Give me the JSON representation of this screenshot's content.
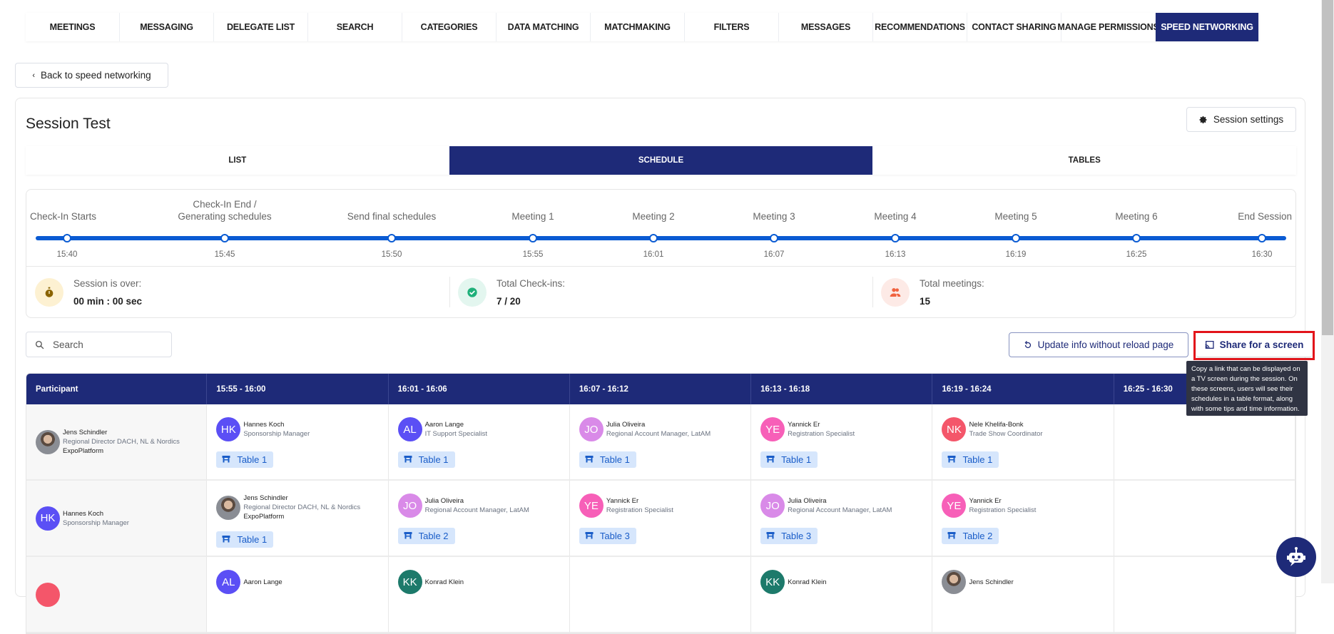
{
  "nav": {
    "tabs": [
      "MEETINGS",
      "MESSAGING",
      "DELEGATE LIST",
      "SEARCH",
      "CATEGORIES",
      "DATA MATCHING",
      "MATCHMAKING",
      "FILTERS",
      "MESSAGES",
      "RECOMMENDATIONS",
      "CONTACT SHARING",
      "MANAGE PERMISSIONS",
      "SPEED NETWORKING"
    ],
    "active": "SPEED NETWORKING"
  },
  "back_label": "Back to speed networking",
  "session": {
    "title": "Session Test",
    "settings_label": "Session settings"
  },
  "subtabs": {
    "items": [
      "LIST",
      "SCHEDULE",
      "TABLES"
    ],
    "active": "SCHEDULE"
  },
  "timeline": {
    "steps": [
      {
        "label": "Check-In Starts",
        "time": "15:40"
      },
      {
        "label": "Check-In End /\nGenerating schedules",
        "time": "15:45"
      },
      {
        "label": "Send final schedules",
        "time": "15:50"
      },
      {
        "label": "Meeting 1",
        "time": "15:55"
      },
      {
        "label": "Meeting 2",
        "time": "16:01"
      },
      {
        "label": "Meeting 3",
        "time": "16:07"
      },
      {
        "label": "Meeting 4",
        "time": "16:13"
      },
      {
        "label": "Meeting 5",
        "time": "16:19"
      },
      {
        "label": "Meeting 6",
        "time": "16:25"
      },
      {
        "label": "End Session",
        "time": "16:30"
      }
    ],
    "progress_color": "#0a5bd3"
  },
  "stats": [
    {
      "label": "Session is over:",
      "value": "00 min : 00 sec",
      "icon": "stopwatch-icon",
      "bg": "#fdf1d2",
      "color": "#8a6300"
    },
    {
      "label": "Total Check-ins:",
      "value": "7 / 20",
      "icon": "check-circle-icon",
      "bg": "#e3f6ef",
      "color": "#1fb07a"
    },
    {
      "label": "Total meetings:",
      "value": "15",
      "icon": "users-icon",
      "bg": "#fdeae6",
      "color": "#f0623f"
    }
  ],
  "search": {
    "placeholder": "Search",
    "value": ""
  },
  "update_label": "Update info without reload page",
  "share_label": "Share for a screen",
  "tooltip": "Copy a link that can be displayed on a TV screen during the session. On these screens, users will see their schedules in a table format, along with some tips and time information.",
  "table": {
    "headers": [
      "Participant",
      "15:55 - 16:00",
      "16:01 - 16:06",
      "16:07 - 16:12",
      "16:13 - 16:18",
      "16:19 - 16:24",
      "16:25 - 16:30"
    ],
    "rows": [
      {
        "participant": {
          "name": "Jens Schindler",
          "role": "Regional Director DACH, NL & Nordics",
          "company": "ExpoPlatform",
          "photo": true
        },
        "cells": [
          {
            "initials": "HK",
            "name": "Hannes Koch",
            "role": "Sponsorship Manager",
            "color": "#5b4ff5",
            "table": "Table 1"
          },
          {
            "initials": "AL",
            "name": "Aaron Lange",
            "role": "IT Support Specialist",
            "color": "#5b4ff5",
            "table": "Table 1"
          },
          {
            "initials": "JO",
            "name": "Julia Oliveira",
            "role": "Regional Account Manager, LatAM",
            "color": "#d98ae8",
            "table": "Table 1"
          },
          {
            "initials": "YE",
            "name": "Yannick Er",
            "role": "Registration Specialist",
            "color": "#f75fb8",
            "table": "Table 1"
          },
          {
            "initials": "NK",
            "name": "Nele Khelifa-Bonk",
            "role": "Trade Show Coordinator",
            "color": "#f4566a",
            "table": "Table 1"
          },
          null
        ]
      },
      {
        "participant": {
          "initials": "HK",
          "name": "Hannes Koch",
          "role": "Sponsorship Manager",
          "color": "#5b4ff5"
        },
        "cells": [
          {
            "name": "Jens Schindler",
            "role": "Regional Director DACH, NL & Nordics",
            "company": "ExpoPlatform",
            "photo": true,
            "table": "Table 1"
          },
          {
            "initials": "JO",
            "name": "Julia Oliveira",
            "role": "Regional Account Manager, LatAM",
            "color": "#d98ae8",
            "table": "Table 2"
          },
          {
            "initials": "YE",
            "name": "Yannick Er",
            "role": "Registration Specialist",
            "color": "#f75fb8",
            "table": "Table 3"
          },
          {
            "initials": "JO",
            "name": "Julia Oliveira",
            "role": "Regional Account Manager, LatAM",
            "color": "#d98ae8",
            "table": "Table 3"
          },
          {
            "initials": "YE",
            "name": "Yannick Er",
            "role": "Registration Specialist",
            "color": "#f75fb8",
            "table": "Table 2"
          },
          null
        ]
      },
      {
        "participant": {
          "initials": "",
          "name": "",
          "role": "",
          "color": "#f4566a"
        },
        "cells": [
          {
            "initials": "AL",
            "name": "Aaron Lange",
            "role": "",
            "color": "#5b4ff5"
          },
          {
            "initials": "KK",
            "name": "Konrad Klein",
            "role": "",
            "color": "#1d7a6b"
          },
          null,
          {
            "initials": "KK",
            "name": "Konrad Klein",
            "role": "",
            "color": "#1d7a6b"
          },
          {
            "name": "Jens Schindler",
            "role": "",
            "photo": true
          },
          null
        ]
      }
    ]
  },
  "colors": {
    "primary": "#1e2a78",
    "highlight": "#e4141b",
    "table_chip_bg": "#d6e6fc"
  }
}
